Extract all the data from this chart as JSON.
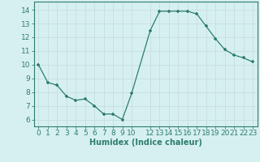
{
  "x": [
    0,
    1,
    2,
    3,
    4,
    5,
    6,
    7,
    8,
    9,
    10,
    12,
    13,
    14,
    15,
    16,
    17,
    18,
    19,
    20,
    21,
    22,
    23
  ],
  "y": [
    10.0,
    8.7,
    8.5,
    7.7,
    7.4,
    7.5,
    7.0,
    6.4,
    6.4,
    6.0,
    7.9,
    12.5,
    13.9,
    13.9,
    13.9,
    13.9,
    13.7,
    12.8,
    11.9,
    11.1,
    10.7,
    10.5,
    10.2
  ],
  "line_color": "#2e7d6e",
  "marker_color": "#2e7d6e",
  "bg_color": "#d6f0f0",
  "grid_color": "#c8dede",
  "xlabel": "Humidex (Indice chaleur)",
  "xlabel_fontsize": 7,
  "xticks": [
    0,
    1,
    2,
    3,
    4,
    5,
    6,
    7,
    8,
    9,
    10,
    12,
    13,
    14,
    15,
    16,
    17,
    18,
    19,
    20,
    21,
    22,
    23
  ],
  "yticks": [
    6,
    7,
    8,
    9,
    10,
    11,
    12,
    13,
    14
  ],
  "ylim": [
    5.5,
    14.6
  ],
  "xlim": [
    -0.5,
    23.5
  ],
  "tick_fontsize": 6.5
}
